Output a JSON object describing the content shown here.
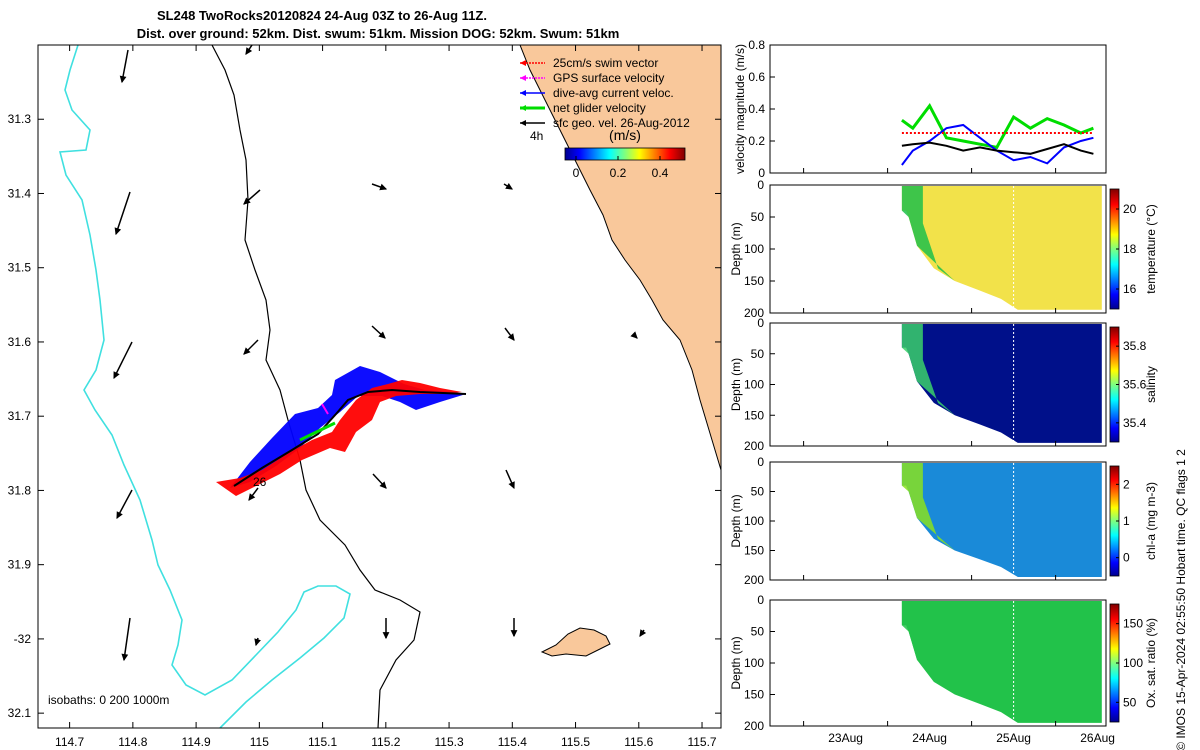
{
  "title": {
    "line1": "SL248 TwoRocks20120824 24-Aug 03Z to 26-Aug 11Z.",
    "line2": "Dist. over ground: 52km. Dist. swum: 51km. Mission DOG: 52km. Swum: 51km"
  },
  "map": {
    "x_ticks": [
      114.7,
      114.8,
      114.9,
      115,
      115.1,
      115.2,
      115.3,
      115.4,
      115.5,
      115.6,
      115.7
    ],
    "x_tick_labels": [
      "114.7",
      "114.8",
      "114.9",
      "115",
      "115.1",
      "115.2",
      "115.3",
      "115.4",
      "115.5",
      "115.6",
      "115.7"
    ],
    "y_ticks": [
      -31.3,
      -31.4,
      -31.5,
      -31.6,
      -31.7,
      -31.8,
      -31.9,
      -32.0,
      -32.1
    ],
    "y_tick_labels": [
      "31.3",
      "31.4",
      "31.5",
      "31.6",
      "31.7",
      "31.8",
      "31.9",
      "-32",
      "32.1"
    ],
    "xlim": [
      114.65,
      115.73
    ],
    "ylim": [
      -32.12,
      -31.2
    ],
    "isobaths_label": "isobaths: 0   200  1000m",
    "legend": [
      {
        "label": "25cm/s swim vector",
        "color": "#ff0000"
      },
      {
        "label": "GPS surface velocity",
        "color": "#ff00ff"
      },
      {
        "label": "dive-avg current veloc.",
        "color": "#0000ff"
      },
      {
        "label": "net glider velocity",
        "color": "#00dd00"
      },
      {
        "label": "sfc geo. vel. 26-Aug-2012",
        "color": "#000000"
      }
    ],
    "colorbar": {
      "title": "(m/s)",
      "ticks": [
        "0",
        "0.2",
        "0.4"
      ]
    },
    "annotations": {
      "start": "4h",
      "end": "26"
    },
    "colors": {
      "land": "#f9c89b",
      "isobath_200": "#000000",
      "isobath_1000": "#40e0e0"
    }
  },
  "chart_data": [
    {
      "type": "line",
      "title": "velocity magnitude",
      "ylabel": "velocity magnitude (m/s)",
      "ylim": [
        0,
        0.8
      ],
      "yticks": [
        "0",
        "0.2",
        "0.4",
        "0.6",
        "0.8"
      ],
      "x": [
        24.17,
        24.3,
        24.5,
        24.7,
        24.9,
        25.1,
        25.3,
        25.5,
        25.7,
        25.9,
        26.1,
        26.3,
        26.45
      ],
      "series": [
        {
          "name": "net glider velocity",
          "color": "#00dd00",
          "values": [
            0.33,
            0.28,
            0.42,
            0.22,
            0.2,
            0.18,
            0.16,
            0.35,
            0.28,
            0.34,
            0.3,
            0.25,
            0.28
          ]
        },
        {
          "name": "dive-avg current veloc.",
          "color": "#0000ff",
          "values": [
            0.05,
            0.14,
            0.2,
            0.28,
            0.3,
            0.22,
            0.14,
            0.08,
            0.1,
            0.06,
            0.16,
            0.2,
            0.22
          ]
        },
        {
          "name": "sfc geo. vel.",
          "color": "#000000",
          "values": [
            0.17,
            0.18,
            0.19,
            0.17,
            0.14,
            0.16,
            0.14,
            0.13,
            0.12,
            0.15,
            0.18,
            0.14,
            0.12
          ]
        },
        {
          "name": "25cm/s swim vector",
          "color": "#ff0000",
          "values": [
            0.25,
            0.25,
            0.25,
            0.25,
            0.25,
            0.25,
            0.25,
            0.25,
            0.25,
            0.25,
            0.25,
            0.25,
            0.25
          ]
        }
      ]
    },
    {
      "type": "heatmap",
      "ylabel": "Depth (m)",
      "cblabel": "temperature (°C)",
      "yticks": [
        "0",
        "50",
        "100",
        "150",
        "200"
      ],
      "cbticks": [
        "16",
        "18",
        "20"
      ],
      "bottom_depth_profile": [
        40,
        60,
        95,
        130,
        155,
        165,
        175,
        185,
        195,
        195
      ],
      "dominant_value": 20
    },
    {
      "type": "heatmap",
      "ylabel": "Depth (m)",
      "cblabel": "salinity",
      "yticks": [
        "0",
        "50",
        "100",
        "150",
        "200"
      ],
      "cbticks": [
        "35.4",
        "35.6",
        "35.8"
      ],
      "dominant_value": 35.35
    },
    {
      "type": "heatmap",
      "ylabel": "Depth (m)",
      "cblabel": "chl-a (mg m-3)",
      "yticks": [
        "0",
        "50",
        "100",
        "150",
        "200"
      ],
      "cbticks": [
        "0",
        "1",
        "2"
      ],
      "dominant_value": 0.8
    },
    {
      "type": "heatmap",
      "ylabel": "Depth (m)",
      "cblabel": "Ox. sat. ratio (%)",
      "yticks": [
        "0",
        "50",
        "100",
        "150",
        "200"
      ],
      "cbticks": [
        "50",
        "100",
        "150"
      ],
      "dominant_value": 100
    }
  ],
  "time_axis": {
    "labels": [
      "23Aug",
      "24Aug",
      "25Aug",
      "26Aug"
    ],
    "xlim": [
      22.6,
      26.6
    ]
  },
  "side_note": "© IMOS 15-Apr-2024 02:55:50 Hobart time. QC flags 1  2"
}
